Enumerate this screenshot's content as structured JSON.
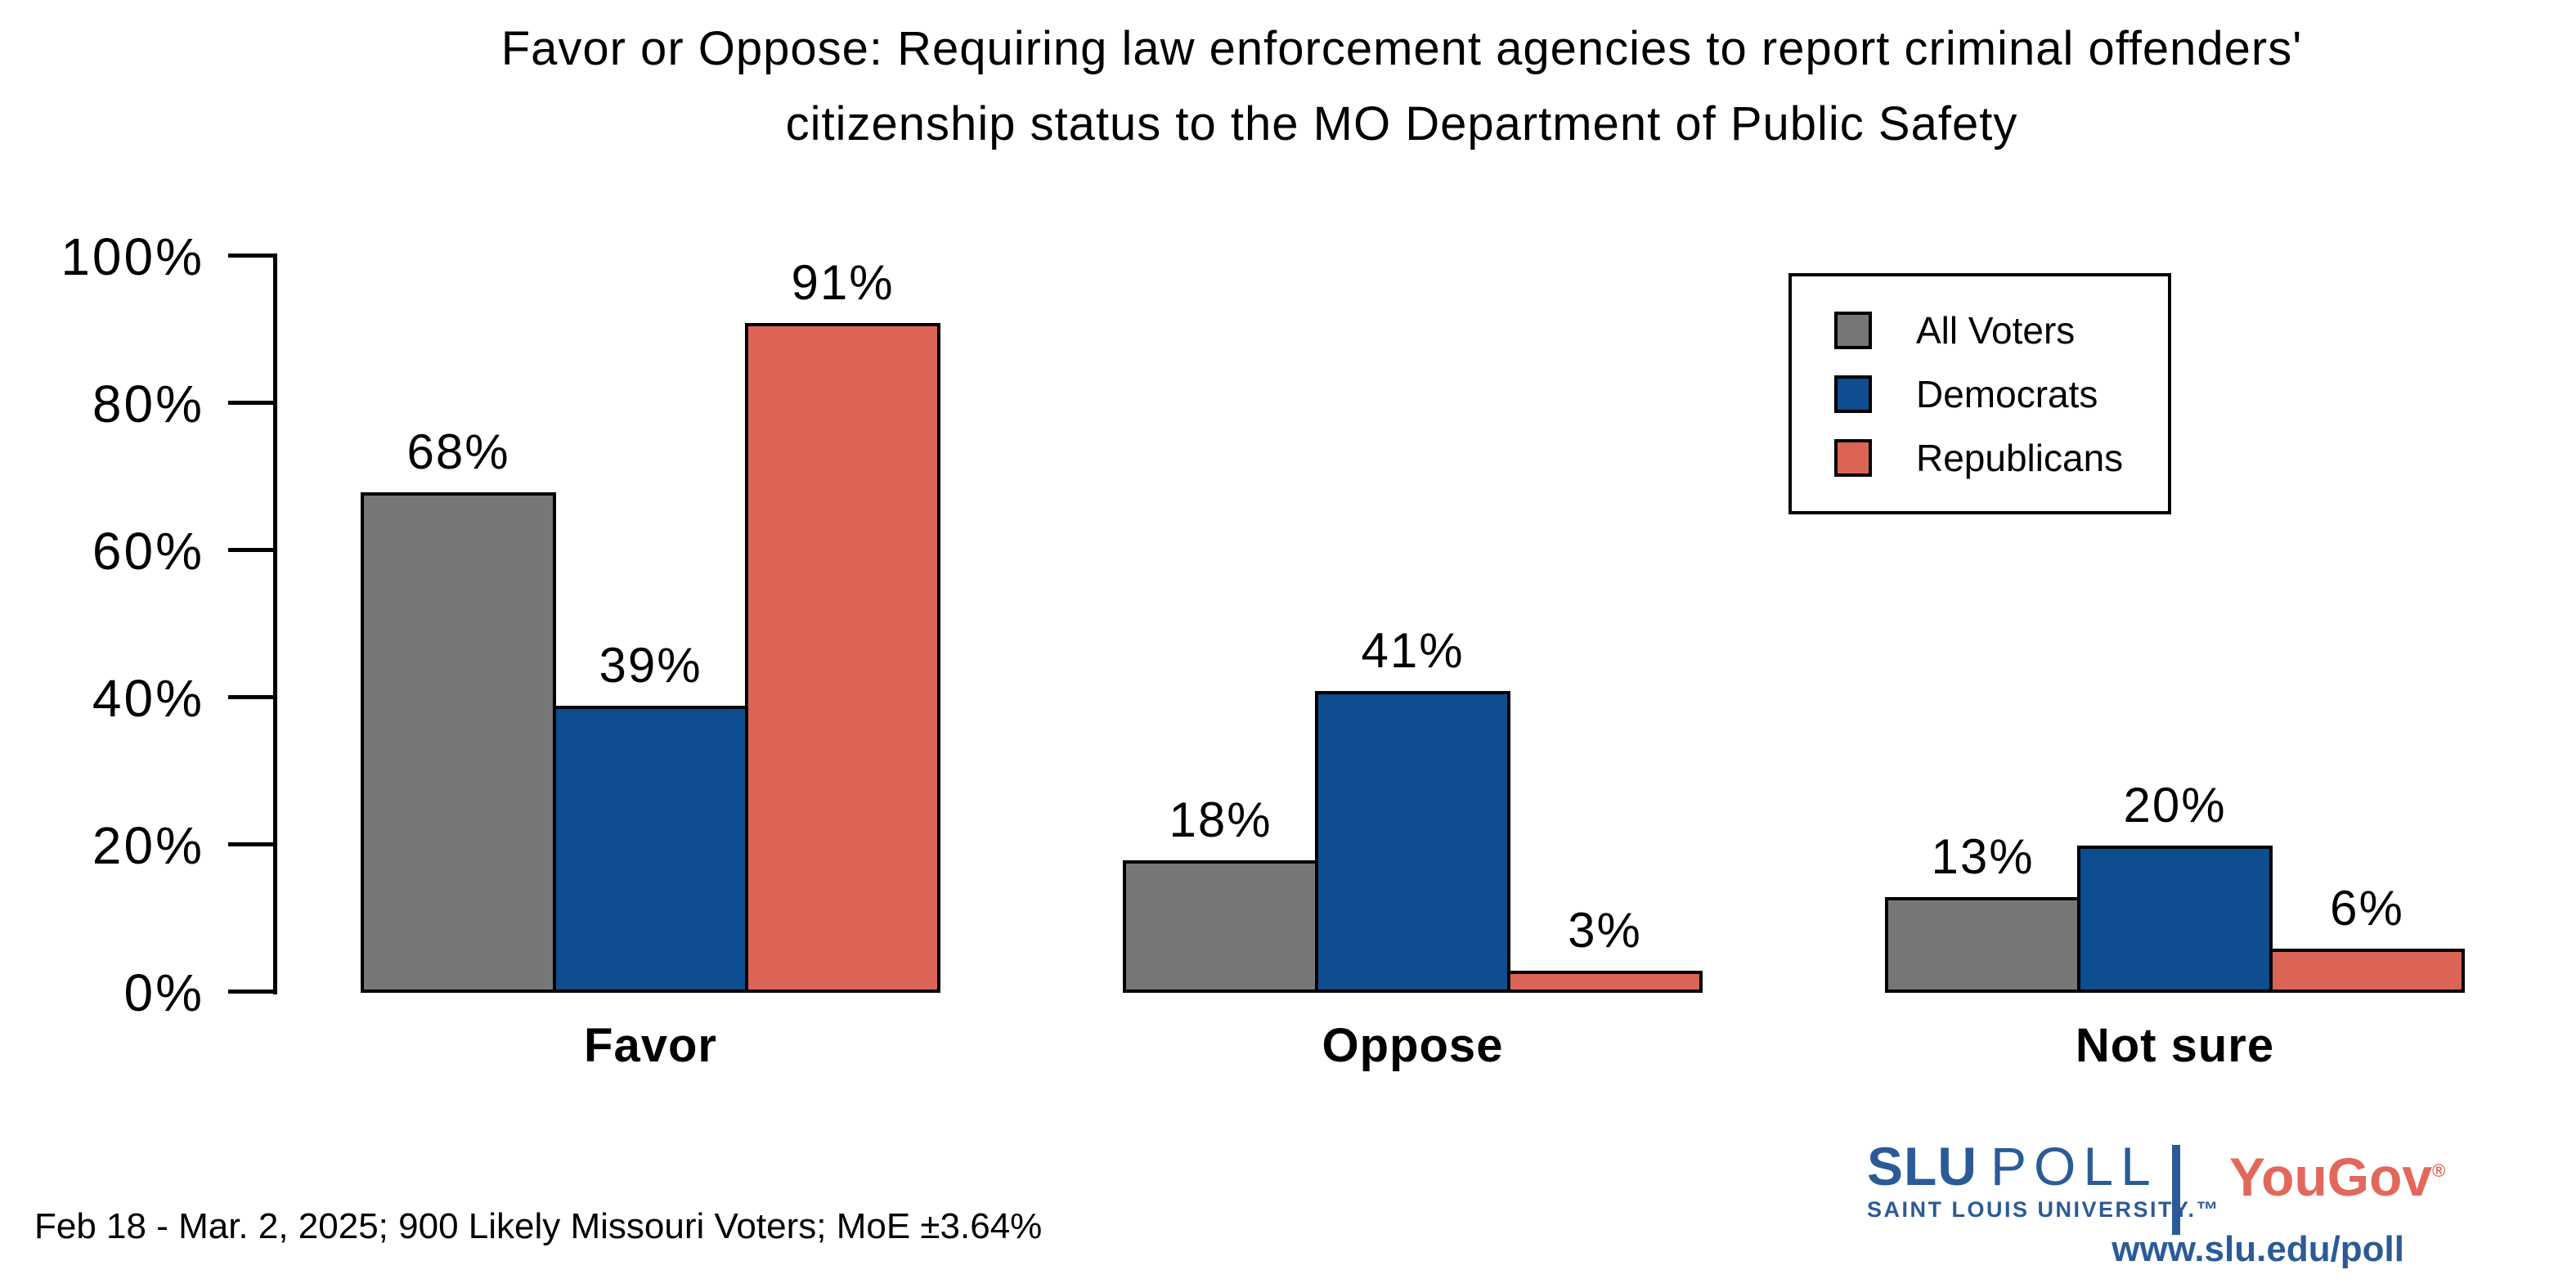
{
  "title": {
    "line1": "Favor or Oppose: Requiring law enforcement agencies to report criminal offenders'",
    "line2": "citizenship status to the MO Department of Public Safety"
  },
  "chart_data": {
    "type": "bar",
    "categories": [
      "Favor",
      "Oppose",
      "Not sure"
    ],
    "series": [
      {
        "name": "All Voters",
        "color": "#777778",
        "values": [
          68,
          18,
          13
        ]
      },
      {
        "name": "Democrats",
        "color": "#0E4D90",
        "values": [
          39,
          41,
          20
        ]
      },
      {
        "name": "Republicans",
        "color": "#DB6456",
        "values": [
          91,
          3,
          6
        ]
      }
    ],
    "value_label_suffix": "%",
    "ylim": [
      0,
      100
    ],
    "yticks": [
      "0%",
      "20%",
      "40%",
      "60%",
      "80%",
      "100%"
    ],
    "grid": false,
    "legend_position": "top-right",
    "bar_border_color": "#000000"
  },
  "footnote": "Feb 18 - Mar. 2, 2025; 900 Likely Missouri Voters; MoE ±3.64%",
  "branding": {
    "slu": {
      "name": "SLU",
      "poll": "POLL",
      "subtitle": "SAINT LOUIS UNIVERSITY.™",
      "color": "#2B5B97"
    },
    "yougov": {
      "text": "YouGov",
      "registered": "®",
      "color": "#E2685B"
    },
    "website": "www.slu.edu/poll"
  }
}
